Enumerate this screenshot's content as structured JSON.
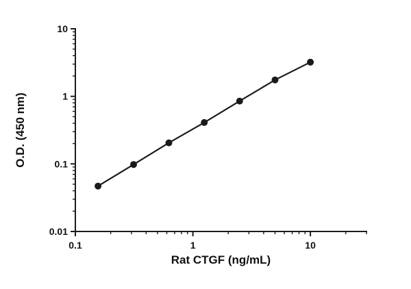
{
  "chart_data": {
    "type": "scatter",
    "subtype": "log-log standard curve with connecting line",
    "title": "",
    "xlabel": "Rat CTGF (ng/mL)",
    "ylabel": "O.D. (450 nm)",
    "xscale": "log",
    "yscale": "log",
    "xlim": [
      0.1,
      30
    ],
    "ylim": [
      0.01,
      10
    ],
    "x_ticks": [
      0.1,
      1,
      10
    ],
    "x_tick_labels": [
      "0.1",
      "1",
      "10"
    ],
    "y_ticks": [
      0.01,
      0.1,
      1,
      10
    ],
    "y_tick_labels": [
      "0.01",
      "0.1",
      "1",
      "10"
    ],
    "grid": "off",
    "legend": "none",
    "points": [
      {
        "x": 0.156,
        "y": 0.047
      },
      {
        "x": 0.313,
        "y": 0.098
      },
      {
        "x": 0.625,
        "y": 0.205
      },
      {
        "x": 1.25,
        "y": 0.41
      },
      {
        "x": 2.5,
        "y": 0.85
      },
      {
        "x": 5.0,
        "y": 1.75
      },
      {
        "x": 10.0,
        "y": 3.2
      }
    ],
    "line_color": "#1a1a1a",
    "marker_color": "#1a1a1a",
    "axis_color": "#1a1a1a",
    "background_color": "#ffffff"
  }
}
